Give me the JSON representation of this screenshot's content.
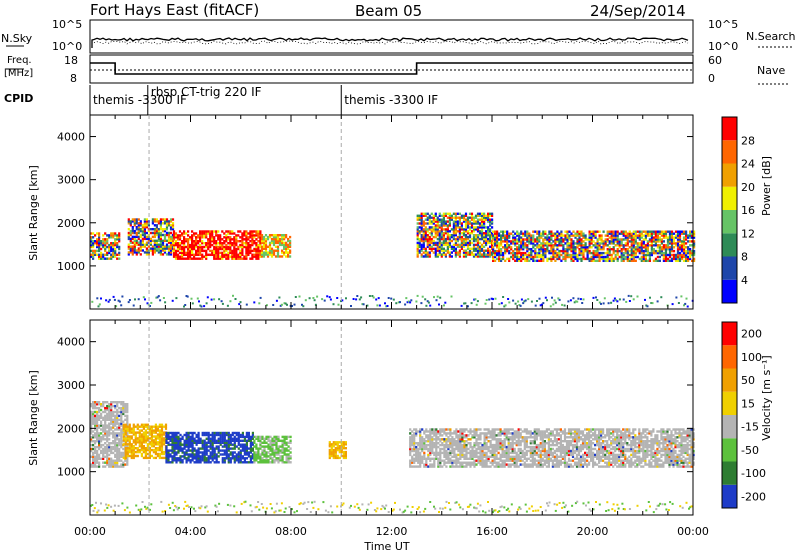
{
  "header": {
    "station": "Fort Hays East (fitACF)",
    "beam": "Beam 05",
    "date": "24/Sep/2014"
  },
  "noise_panel": {
    "left_label": "N.Sky",
    "right_label": "N.Search",
    "left_ticks": [
      "10^5",
      "10^0"
    ],
    "right_ticks": [
      "10^5",
      "10^0"
    ]
  },
  "freq_panel": {
    "left_label_1": "Freq.",
    "left_label_2": "[MHz]",
    "right_label": "Nave",
    "left_ticks": [
      "18",
      "8"
    ],
    "right_ticks": [
      "60",
      "0"
    ]
  },
  "cpid": {
    "label": "CPID",
    "segments": [
      {
        "start_hr": 0.0,
        "text": "themis -3300 IF"
      },
      {
        "start_hr": 2.3,
        "text": "rbsp CT-trig 220 IF"
      },
      {
        "start_hr": 10.0,
        "text": "themis -3300 IF"
      }
    ]
  },
  "chart_data": [
    {
      "type": "heatmap",
      "name": "power",
      "ylabel": "Slant Range [km]",
      "xlabel": "Time UT",
      "ylim": [
        0,
        4500
      ],
      "yticks": [
        "1000",
        "2000",
        "3000",
        "4000"
      ],
      "xticks": [
        "00:00",
        "04:00",
        "08:00",
        "12:00",
        "16:00",
        "20:00",
        "00:00"
      ],
      "colorbar": {
        "label": "Power [dB]",
        "ticks": [
          "4",
          "8",
          "12",
          "16",
          "20",
          "24",
          "28"
        ],
        "colors": [
          "#0000ff",
          "#1e46aa",
          "#2e8b57",
          "#66c466",
          "#f0f000",
          "#f0a000",
          "#ff6600",
          "#ff0000"
        ]
      },
      "bands": [
        {
          "t": [
            0.0,
            1.2
          ],
          "r": [
            1150,
            1750
          ],
          "level": "mixed"
        },
        {
          "t": [
            1.5,
            3.3
          ],
          "r": [
            1250,
            2100
          ],
          "level": "mixed"
        },
        {
          "t": [
            3.3,
            6.8
          ],
          "r": [
            1150,
            1800
          ],
          "level": "high"
        },
        {
          "t": [
            6.8,
            8.0
          ],
          "r": [
            1200,
            1700
          ],
          "level": "mid"
        },
        {
          "t": [
            13.0,
            16.0
          ],
          "r": [
            1200,
            2200
          ],
          "level": "mixed"
        },
        {
          "t": [
            16.0,
            24.0
          ],
          "r": [
            1100,
            1800
          ],
          "level": "mixed"
        }
      ]
    },
    {
      "type": "heatmap",
      "name": "velocity",
      "ylabel": "Slant Range [km]",
      "xlabel": "Time UT",
      "ylim": [
        0,
        4500
      ],
      "yticks": [
        "1000",
        "2000",
        "3000",
        "4000"
      ],
      "xticks": [
        "00:00",
        "04:00",
        "08:00",
        "12:00",
        "16:00",
        "20:00",
        "00:00"
      ],
      "colorbar": {
        "label": "Velocity [m s⁻¹]",
        "ticks": [
          "200",
          "100",
          "50",
          "15",
          "-15",
          "-50",
          "-100",
          "-200"
        ],
        "colors": [
          "#1e3cc8",
          "#2e7d32",
          "#5cc13c",
          "#b4b4b4",
          "#f0d000",
          "#f0a000",
          "#ff6600",
          "#ff0000"
        ]
      },
      "bands": [
        {
          "t": [
            0.0,
            1.5
          ],
          "r": [
            1100,
            2600
          ],
          "level": "gray"
        },
        {
          "t": [
            1.3,
            3.0
          ],
          "r": [
            1300,
            2100
          ],
          "level": "orange"
        },
        {
          "t": [
            3.0,
            6.5
          ],
          "r": [
            1200,
            1900
          ],
          "level": "blue"
        },
        {
          "t": [
            6.5,
            8.0
          ],
          "r": [
            1200,
            1800
          ],
          "level": "green"
        },
        {
          "t": [
            9.5,
            10.2
          ],
          "r": [
            1300,
            1700
          ],
          "level": "orange"
        },
        {
          "t": [
            12.7,
            24.0
          ],
          "r": [
            1100,
            2000
          ],
          "level": "gray"
        }
      ]
    }
  ]
}
